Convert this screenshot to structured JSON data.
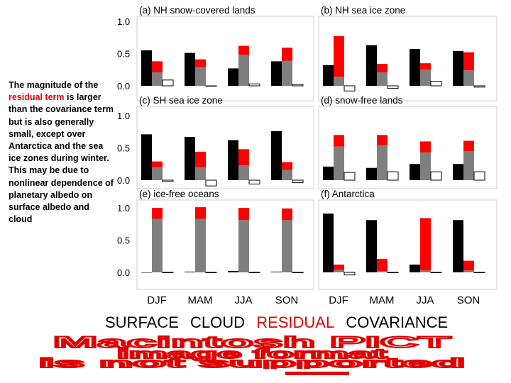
{
  "side_note": {
    "before": "The magnitude of the",
    "highlight": "residual term",
    "after": "is larger than the covariance term but is also generally small, except over Antarctica and the sea ice zones during winter. This may be due to nonlinear dependence of planetary albedo on surface albedo and cloud"
  },
  "legend": {
    "surface": "SURFACE",
    "cloud": "CLOUD",
    "residual": "RESIDUAL",
    "covariance": "COVARIANCE"
  },
  "placeholder_text": [
    "Macintosh PICT",
    "image format",
    "is not supported"
  ],
  "colors": {
    "surface": "#7f7f7f",
    "cloud": "#000000",
    "residual": "#ff0000",
    "covariance": "#ffffff",
    "red_text": "#e00000"
  },
  "chart_data": {
    "type": "bar",
    "categories": [
      "DJF",
      "MAM",
      "JJA",
      "SON"
    ],
    "ytick_labels": [
      "0.0",
      "0.5",
      "1.0"
    ],
    "panels": [
      {
        "title": "(a) NH snow-covered lands",
        "cloud": [
          0.55,
          0.51,
          0.27,
          0.38
        ],
        "surface": [
          0.21,
          0.29,
          0.48,
          0.39
        ],
        "residual": [
          0.17,
          0.12,
          0.14,
          0.2
        ],
        "covariance": [
          0.09,
          0.0,
          0.03,
          0.02
        ]
      },
      {
        "title": "(b) NH sea ice zone",
        "cloud": [
          0.32,
          0.63,
          0.57,
          0.54
        ],
        "surface": [
          0.14,
          0.21,
          0.25,
          0.24
        ],
        "residual": [
          0.63,
          0.13,
          0.1,
          0.28
        ],
        "covariance": [
          -0.08,
          -0.04,
          0.07,
          -0.02
        ]
      },
      {
        "title": "(c) SH sea ice zone",
        "cloud": [
          0.71,
          0.67,
          0.62,
          0.76
        ],
        "surface": [
          0.2,
          0.2,
          0.23,
          0.16
        ],
        "residual": [
          0.09,
          0.24,
          0.25,
          0.12
        ],
        "covariance": [
          -0.02,
          -0.09,
          -0.06,
          -0.04
        ]
      },
      {
        "title": "(d) snow-free lands",
        "cloud": [
          0.21,
          0.19,
          0.25,
          0.25
        ],
        "surface": [
          0.52,
          0.54,
          0.43,
          0.45
        ],
        "residual": [
          0.18,
          0.16,
          0.17,
          0.16
        ],
        "covariance": [
          0.12,
          0.13,
          0.13,
          0.13
        ]
      },
      {
        "title": "(e) ice-free oceans",
        "cloud": [
          0.0,
          0.01,
          0.02,
          0.01
        ],
        "surface": [
          0.83,
          0.83,
          0.81,
          0.81
        ],
        "residual": [
          0.17,
          0.18,
          0.19,
          0.18
        ],
        "covariance": [
          0.0,
          0.0,
          0.0,
          0.0
        ]
      },
      {
        "title": "(f) Antarctica",
        "cloud": [
          0.91,
          0.81,
          0.12,
          0.81
        ],
        "surface": [
          0.04,
          0.02,
          0.03,
          0.03
        ],
        "residual": [
          0.08,
          0.19,
          0.81,
          0.15
        ],
        "covariance": [
          -0.04,
          0.0,
          0.0,
          0.0
        ]
      }
    ]
  }
}
